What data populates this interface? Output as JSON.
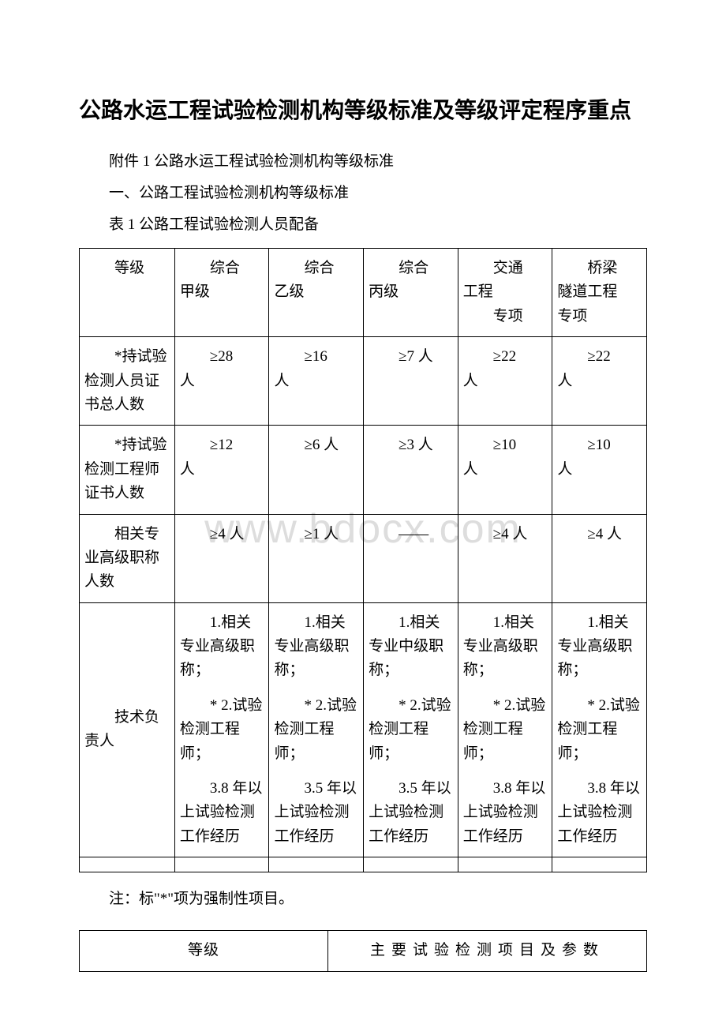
{
  "watermark": "www.bdocx.com",
  "title": "公路水运工程试验检测机构等级标准及等级评定程序重点",
  "p1": "附件 1 公路水运工程试验检测机构等级标准",
  "p2": "一、公路工程试验检测机构等级标准",
  "p3": "表 1 公路工程试验检测人员配备",
  "table1": {
    "header": {
      "c0": "等级",
      "c1a": "综合",
      "c1b": "甲级",
      "c2a": "综合",
      "c2b": "乙级",
      "c3a": "综合",
      "c3b": "丙级",
      "c4a": "交通",
      "c4b": "工程",
      "c4c": "专项",
      "c5a": "桥梁",
      "c5b": "隧道工程",
      "c5c": "专项"
    },
    "r1": {
      "label": "*持试验检测人员证书总人数",
      "c1a": "≥28",
      "c1b": "人",
      "c2a": "≥16",
      "c2b": "人",
      "c3": "≥7 人",
      "c4a": "≥22",
      "c4b": "人",
      "c5a": "≥22",
      "c5b": "人"
    },
    "r2": {
      "label": "*持试验检测工程师证书人数",
      "c1a": "≥12",
      "c1b": "人",
      "c2": "≥6 人",
      "c3": "≥3 人",
      "c4a": "≥10",
      "c4b": "人",
      "c5a": "≥10",
      "c5b": "人"
    },
    "r3": {
      "label": "相关专业高级职称人数",
      "c1": "≥4 人",
      "c2": "≥1 人",
      "c3": "——",
      "c4": "≥4 人",
      "c5": "≥4 人"
    },
    "r4": {
      "label": "技术负责人",
      "c1": {
        "p1": "1.相关专业高级职称；",
        "p2": "* 2.试验检测工程师；",
        "p3": "3.8 年以上试验检测工作经历"
      },
      "c2": {
        "p1": "1.相关专业高级职称；",
        "p2": "* 2.试验检测工程师；",
        "p3": "3.5 年以上试验检测工作经历"
      },
      "c3": {
        "p1": "1.相关专业中级职称；",
        "p2": "* 2.试验检测工程师；",
        "p3": "3.5 年以上试验检测工作经历"
      },
      "c4": {
        "p1": "1.相关专业高级职称；",
        "p2": "* 2.试验检测工程师；",
        "p3": "3.8 年以上试验检测工作经历"
      },
      "c5": {
        "p1": "1.相关专业高级职称；",
        "p2": "* 2.试验检测工程师；",
        "p3": "3.8 年以上试验检测工作经历"
      }
    }
  },
  "note": "注：标\"*\"项为强制性项目。",
  "table2": {
    "h1": "等级",
    "h2": "主要试验检测项目及参数"
  }
}
